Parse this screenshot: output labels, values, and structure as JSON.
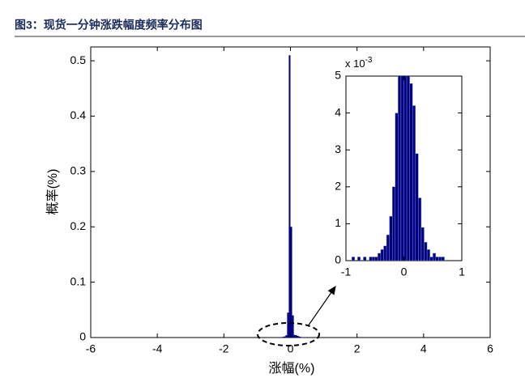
{
  "page_title": "图3：现货一分钟涨跌幅度频率分布图",
  "chart_data": {
    "type": "histogram",
    "x_label": "涨幅(%)",
    "y_label": "概率(%)",
    "color": "#000080",
    "bins": [
      -1,
      -0.95,
      -0.9,
      -0.85,
      -0.8,
      -0.75,
      -0.7,
      -0.65,
      -0.6,
      -0.55,
      -0.5,
      -0.45,
      -0.4,
      -0.35,
      -0.3,
      -0.25,
      -0.2,
      -0.15,
      -0.1,
      -0.05,
      0,
      0.05,
      0.1,
      0.15,
      0.2,
      0.25,
      0.3,
      0.35,
      0.4,
      0.45,
      0.5,
      0.55,
      0.6,
      0.65,
      0.7,
      0.75,
      0.8,
      0.85,
      0.9,
      0.95,
      1
    ],
    "values": [
      0,
      0,
      0.0001,
      0,
      0.0001,
      0,
      0.0001,
      0,
      0.0001,
      0.0001,
      0.0001,
      0.0002,
      0.0003,
      0.0004,
      0.0007,
      0.0012,
      0.002,
      0.004,
      0.045,
      0.51,
      0.2,
      0.04,
      0.0048,
      0.0042,
      0.0029,
      0.0017,
      0.0009,
      0.0005,
      0.0003,
      0.0001,
      0.0002,
      0.0001,
      0.0001,
      0.0001,
      0,
      0,
      0,
      0,
      0,
      0
    ],
    "xlim": [
      -6,
      6
    ],
    "xticks": [
      -6,
      -4,
      -2,
      0,
      2,
      4,
      6
    ],
    "ylim": [
      0,
      0.525
    ],
    "yticks": [
      0,
      0.1,
      0.2,
      0.3,
      0.4,
      0.5
    ],
    "inset": {
      "xlim": [
        -1,
        1
      ],
      "xticks": [
        -1,
        0,
        1
      ],
      "ylim": [
        0,
        0.005
      ],
      "yticks": [
        0,
        {
          "value": 0.001,
          "label": "1"
        },
        {
          "value": 0.002,
          "label": "2"
        },
        {
          "value": 0.003,
          "label": "3"
        },
        {
          "value": 0.004,
          "label": "4"
        },
        {
          "value": 0.005,
          "label": "5"
        }
      ],
      "scale_label": "x 10",
      "scale_exponent": "-3"
    }
  }
}
